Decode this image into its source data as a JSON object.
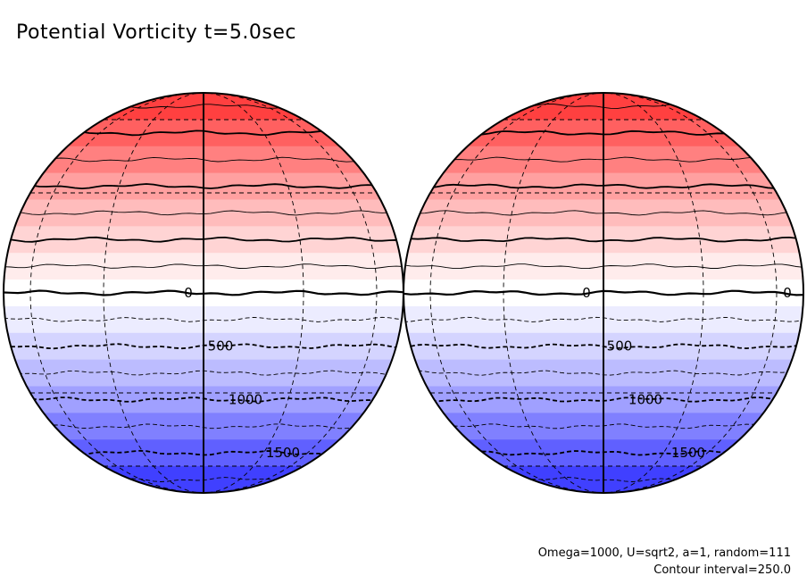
{
  "title": "Potential Vorticity t=5.0sec",
  "params_text": "Omega=1000, U=sqrt2, a=1, random=111",
  "contour_interval_text": "Contour interval=250.0",
  "colors": {
    "band_colors": [
      "#ff4040",
      "#ff6060",
      "#ff8080",
      "#ffa0a0",
      "#ffbcbc",
      "#ffd4d4",
      "#ffecec",
      "#ffffff",
      "#ececff",
      "#d4d4ff",
      "#bcbcff",
      "#a0a0ff",
      "#8080ff",
      "#6060ff",
      "#4040ff"
    ]
  },
  "contour_levels": [
    -1750,
    -1500,
    -1250,
    -1000,
    -750,
    -500,
    -250,
    0,
    250,
    500,
    750,
    1000,
    1250,
    1500,
    1750
  ],
  "globes": [
    {
      "name": "left-hemisphere",
      "labels": [
        {
          "text": "0",
          "value": 0
        },
        {
          "text": "500",
          "value": 500
        },
        {
          "text": "1000",
          "value": 1000
        },
        {
          "text": "1500",
          "value": 1500
        }
      ]
    },
    {
      "name": "right-hemisphere",
      "labels": [
        {
          "text": "0",
          "value": 0
        },
        {
          "text": "0",
          "value": 0
        },
        {
          "text": "500",
          "value": 500
        },
        {
          "text": "1000",
          "value": 1000
        },
        {
          "text": "1500",
          "value": 1500
        }
      ]
    }
  ]
}
